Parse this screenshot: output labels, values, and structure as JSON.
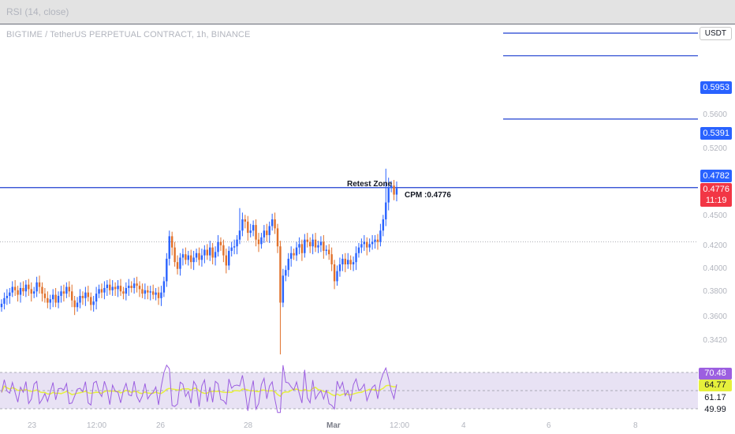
{
  "top_strip": {
    "rsi_label": "RSI (14, close)"
  },
  "chart_title": "BIGTIME / TetherUS PERPETUAL CONTRACT, 1h, BINANCE",
  "currency_tag": "USDT",
  "price_levels": [
    {
      "label": "0.5953",
      "color": "#2962ff"
    },
    {
      "label": "0.5391",
      "color": "#2962ff"
    },
    {
      "label": "0.4782",
      "color": "#2962ff"
    }
  ],
  "current_price": {
    "value": "0.4776",
    "countdown": "11:19",
    "color": "#f23645"
  },
  "annotations": {
    "retest_zone": "Retest Zone",
    "cpm": "CPM :0.4776"
  },
  "colors": {
    "up": "#2962ff",
    "down": "#e0702a",
    "rsi_line": "#9c5fe0",
    "rsi_ma": "#e6f03c",
    "level_line": "#1e3fd0"
  },
  "chart_data": {
    "type": "candlestick",
    "title": "BIGTIME / TetherUS PERPETUAL CONTRACT, 1h, BINANCE",
    "y_ticks": [
      "0.5600",
      "0.5200",
      "0.4500",
      "0.4200",
      "0.4000",
      "0.3800",
      "0.3600",
      "0.3420"
    ],
    "ylim": [
      0.328,
      0.6
    ],
    "x_ticks": [
      "23",
      "12:00",
      "26",
      "28",
      "Mar",
      "12:00",
      "4",
      "6",
      "8"
    ],
    "horizontal_levels": [
      0.5953,
      0.5391,
      0.4782
    ],
    "dotted_level": 0.43,
    "closes": [
      0.375,
      0.38,
      0.382,
      0.385,
      0.39,
      0.387,
      0.383,
      0.389,
      0.386,
      0.392,
      0.388,
      0.384,
      0.386,
      0.394,
      0.39,
      0.384,
      0.38,
      0.376,
      0.379,
      0.383,
      0.376,
      0.382,
      0.386,
      0.384,
      0.39,
      0.386,
      0.378,
      0.372,
      0.376,
      0.382,
      0.38,
      0.385,
      0.381,
      0.374,
      0.377,
      0.384,
      0.388,
      0.385,
      0.389,
      0.392,
      0.387,
      0.39,
      0.388,
      0.391,
      0.386,
      0.384,
      0.389,
      0.391,
      0.389,
      0.393,
      0.391,
      0.388,
      0.384,
      0.387,
      0.385,
      0.386,
      0.383,
      0.385,
      0.38,
      0.385,
      0.395,
      0.415,
      0.435,
      0.425,
      0.412,
      0.406,
      0.416,
      0.419,
      0.414,
      0.418,
      0.412,
      0.416,
      0.42,
      0.414,
      0.418,
      0.423,
      0.418,
      0.425,
      0.416,
      0.421,
      0.43,
      0.427,
      0.418,
      0.409,
      0.422,
      0.425,
      0.426,
      0.432,
      0.44,
      0.45,
      0.448,
      0.438,
      0.44,
      0.445,
      0.432,
      0.428,
      0.434,
      0.44,
      0.436,
      0.444,
      0.45,
      0.442,
      0.426,
      0.376,
      0.4,
      0.405,
      0.415,
      0.42,
      0.418,
      0.425,
      0.428,
      0.42,
      0.432,
      0.43,
      0.426,
      0.432,
      0.425,
      0.427,
      0.43,
      0.422,
      0.423,
      0.419,
      0.41,
      0.395,
      0.404,
      0.41,
      0.415,
      0.41,
      0.414,
      0.41,
      0.412,
      0.42,
      0.425,
      0.428,
      0.43,
      0.425,
      0.428,
      0.43,
      0.432,
      0.43,
      0.44,
      0.45,
      0.465,
      0.478,
      0.48,
      0.472,
      0.4776
    ],
    "rsi": {
      "values_shown": [
        "70.48",
        "64.77",
        "61.17",
        "49.99"
      ]
    }
  }
}
